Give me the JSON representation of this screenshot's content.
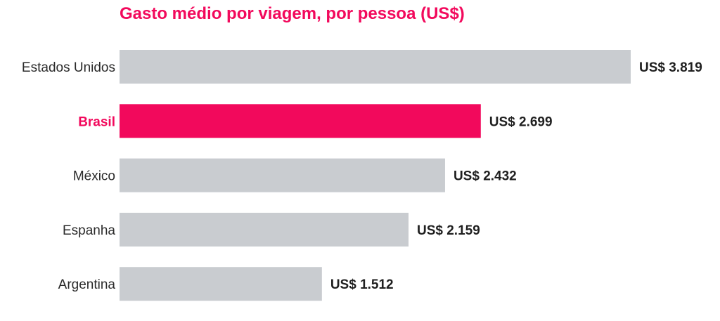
{
  "chart_data": {
    "type": "bar",
    "orientation": "horizontal",
    "title": "Gasto médio por viagem, por pessoa (US$)",
    "xlabel": "",
    "ylabel": "",
    "categories": [
      "Estados Unidos",
      "Brasil",
      "México",
      "Espanha",
      "Argentina"
    ],
    "values": [
      3819,
      2699,
      2432,
      2159,
      1512
    ],
    "value_labels": [
      "US$ 3.819",
      "US$ 2.699",
      "US$ 2.432",
      "US$ 2.159",
      "US$ 1.512"
    ],
    "highlight_category": "Brasil",
    "xlim": [
      0,
      3819
    ],
    "grid": false,
    "legend": "none"
  },
  "colors": {
    "title": "#f2095c",
    "highlight": "#f2095c",
    "bar": "#c9ccd0",
    "label": "#2a2a2a",
    "value": "#1f1f1f"
  }
}
